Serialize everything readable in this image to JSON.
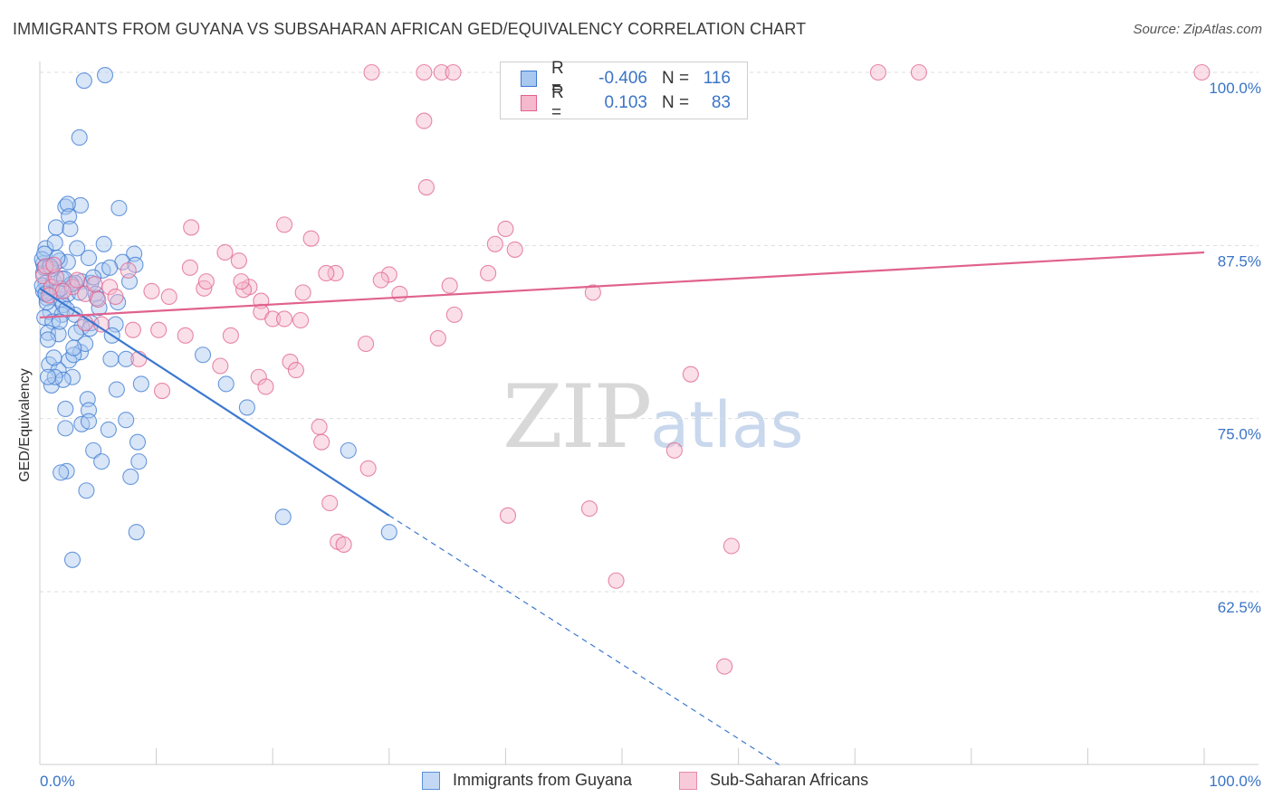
{
  "title": "IMMIGRANTS FROM GUYANA VS SUBSAHARAN AFRICAN GED/EQUIVALENCY CORRELATION CHART",
  "source": "Source: ZipAtlas.com",
  "watermark": {
    "zip": "ZIP",
    "atlas": "atlas"
  },
  "legend": {
    "series1": {
      "r_label": "R =",
      "r_value": "-0.406",
      "n_label": "N =",
      "n_value": "116"
    },
    "series2": {
      "r_label": "R =",
      "r_value": "0.103",
      "n_label": "N =",
      "n_value": "83"
    }
  },
  "colors": {
    "blue": "#3b78d0",
    "blue_fill": "#a9c8f0",
    "pink": "#e0628e",
    "pink_fill": "#f5b8cc",
    "tick_text": "#3a74c6",
    "grid": "#dddddd"
  },
  "chart_data": {
    "type": "scatter",
    "title": "IMMIGRANTS FROM GUYANA VS SUBSAHARAN AFRICAN GED/EQUIVALENCY CORRELATION CHART",
    "xlabel": "",
    "ylabel": "GED/Equivalency",
    "xlim": [
      0,
      100
    ],
    "ylim": [
      50,
      101
    ],
    "x_tick_labels": [
      "0.0%",
      "100.0%"
    ],
    "y_ticks": [
      {
        "value": 100.0,
        "label": "100.0%"
      },
      {
        "value": 87.5,
        "label": "87.5%"
      },
      {
        "value": 75.0,
        "label": "75.0%"
      },
      {
        "value": 62.5,
        "label": "62.5%"
      }
    ],
    "series": [
      {
        "name": "Immigrants from Guyana",
        "color": "blue",
        "points": [
          [
            3.8,
            99.4
          ],
          [
            5.6,
            99.8
          ],
          [
            3.4,
            95.3
          ],
          [
            2.2,
            90.3
          ],
          [
            3.5,
            90.4
          ],
          [
            6.8,
            90.2
          ],
          [
            2.4,
            90.5
          ],
          [
            1.4,
            88.8
          ],
          [
            2.5,
            89.6
          ],
          [
            2.6,
            88.7
          ],
          [
            0.5,
            87.3
          ],
          [
            1.3,
            87.7
          ],
          [
            3.2,
            87.3
          ],
          [
            4.2,
            86.6
          ],
          [
            5.5,
            87.6
          ],
          [
            8.1,
            86.9
          ],
          [
            0.3,
            86.2
          ],
          [
            0.8,
            86.0
          ],
          [
            1.7,
            86.4
          ],
          [
            2.4,
            86.3
          ],
          [
            5.4,
            85.7
          ],
          [
            7.1,
            86.3
          ],
          [
            8.2,
            86.1
          ],
          [
            0.3,
            85.5
          ],
          [
            0.5,
            84.8
          ],
          [
            1.2,
            84.9
          ],
          [
            1.9,
            85.1
          ],
          [
            3.6,
            84.9
          ],
          [
            4.4,
            84.8
          ],
          [
            7.7,
            84.9
          ],
          [
            0.5,
            84.1
          ],
          [
            0.6,
            83.7
          ],
          [
            0.9,
            84.1
          ],
          [
            1.8,
            83.6
          ],
          [
            2.4,
            84.0
          ],
          [
            3.4,
            84.1
          ],
          [
            4.8,
            84.0
          ],
          [
            0.3,
            84.2
          ],
          [
            6.7,
            83.4
          ],
          [
            2.0,
            83.2
          ],
          [
            0.9,
            82.7
          ],
          [
            1.9,
            82.5
          ],
          [
            3.0,
            82.5
          ],
          [
            0.4,
            82.3
          ],
          [
            1.1,
            82.0
          ],
          [
            4.4,
            81.9
          ],
          [
            3.6,
            81.6
          ],
          [
            0.7,
            81.2
          ],
          [
            1.6,
            81.1
          ],
          [
            3.1,
            81.2
          ],
          [
            0.7,
            80.7
          ],
          [
            4.3,
            81.5
          ],
          [
            6.5,
            81.8
          ],
          [
            6.2,
            81.0
          ],
          [
            3.5,
            79.8
          ],
          [
            2.5,
            79.2
          ],
          [
            6.1,
            79.3
          ],
          [
            7.4,
            79.3
          ],
          [
            2.9,
            79.6
          ],
          [
            0.8,
            78.9
          ],
          [
            1.6,
            78.5
          ],
          [
            2.8,
            78.0
          ],
          [
            1.0,
            77.4
          ],
          [
            2.0,
            77.8
          ],
          [
            6.6,
            77.1
          ],
          [
            8.7,
            77.5
          ],
          [
            14.0,
            79.6
          ],
          [
            16.0,
            77.5
          ],
          [
            1.3,
            78.0
          ],
          [
            0.7,
            78.0
          ],
          [
            4.1,
            76.4
          ],
          [
            4.2,
            75.6
          ],
          [
            2.2,
            75.7
          ],
          [
            3.6,
            74.6
          ],
          [
            4.2,
            74.8
          ],
          [
            7.4,
            74.9
          ],
          [
            2.2,
            74.3
          ],
          [
            5.9,
            74.2
          ],
          [
            8.4,
            73.3
          ],
          [
            4.6,
            72.7
          ],
          [
            5.3,
            71.9
          ],
          [
            8.5,
            71.9
          ],
          [
            2.3,
            71.2
          ],
          [
            1.8,
            71.1
          ],
          [
            7.8,
            70.8
          ],
          [
            4.0,
            69.8
          ],
          [
            8.3,
            66.8
          ],
          [
            2.8,
            64.8
          ],
          [
            17.8,
            75.8
          ],
          [
            20.9,
            67.9
          ],
          [
            26.5,
            72.7
          ],
          [
            30.0,
            66.8
          ],
          [
            1.0,
            84.5
          ],
          [
            3.0,
            84.8
          ],
          [
            0.2,
            86.5
          ],
          [
            0.4,
            86.9
          ],
          [
            1.5,
            86.6
          ],
          [
            0.2,
            84.6
          ],
          [
            0.6,
            83.4
          ],
          [
            5.1,
            83.0
          ],
          [
            2.7,
            84.7
          ],
          [
            4.6,
            85.2
          ],
          [
            1.0,
            85.8
          ],
          [
            2.3,
            82.9
          ],
          [
            0.5,
            84.0
          ],
          [
            1.5,
            84.2
          ],
          [
            3.9,
            80.4
          ],
          [
            2.9,
            80.1
          ],
          [
            1.2,
            79.4
          ],
          [
            0.4,
            85.9
          ],
          [
            0.9,
            86.0
          ],
          [
            1.8,
            84.4
          ],
          [
            2.1,
            85.1
          ],
          [
            6.0,
            85.9
          ],
          [
            4.9,
            83.7
          ],
          [
            1.7,
            82.0
          ]
        ]
      },
      {
        "name": "Sub-Saharan Africans",
        "color": "pink",
        "points": [
          [
            28.5,
            100.0
          ],
          [
            33.0,
            100.0
          ],
          [
            34.5,
            100.0
          ],
          [
            35.5,
            100.0
          ],
          [
            72.0,
            100.0
          ],
          [
            75.5,
            100.0
          ],
          [
            99.8,
            100.0
          ],
          [
            33.0,
            96.5
          ],
          [
            33.2,
            91.7
          ],
          [
            13.0,
            88.8
          ],
          [
            21.0,
            89.0
          ],
          [
            23.3,
            88.0
          ],
          [
            40.0,
            88.7
          ],
          [
            39.1,
            87.6
          ],
          [
            40.8,
            87.2
          ],
          [
            15.9,
            87.0
          ],
          [
            17.1,
            86.4
          ],
          [
            12.9,
            85.9
          ],
          [
            25.4,
            85.5
          ],
          [
            38.5,
            85.5
          ],
          [
            30.0,
            85.4
          ],
          [
            29.3,
            85.0
          ],
          [
            7.6,
            85.7
          ],
          [
            9.6,
            84.2
          ],
          [
            11.1,
            83.8
          ],
          [
            14.1,
            84.4
          ],
          [
            18.0,
            84.5
          ],
          [
            14.3,
            84.9
          ],
          [
            22.6,
            84.1
          ],
          [
            24.6,
            85.5
          ],
          [
            30.9,
            84.0
          ],
          [
            35.2,
            84.6
          ],
          [
            47.5,
            84.1
          ],
          [
            0.3,
            85.3
          ],
          [
            1.0,
            84.5
          ],
          [
            1.4,
            85.2
          ],
          [
            2.8,
            84.5
          ],
          [
            3.9,
            84.0
          ],
          [
            5.0,
            83.6
          ],
          [
            6.0,
            84.5
          ],
          [
            6.5,
            83.8
          ],
          [
            17.5,
            84.3
          ],
          [
            17.3,
            84.9
          ],
          [
            19.0,
            83.5
          ],
          [
            19.0,
            82.7
          ],
          [
            20.0,
            82.2
          ],
          [
            21.0,
            82.2
          ],
          [
            22.4,
            82.1
          ],
          [
            3.9,
            81.9
          ],
          [
            5.3,
            81.8
          ],
          [
            8.0,
            81.4
          ],
          [
            10.2,
            81.4
          ],
          [
            12.5,
            81.0
          ],
          [
            16.4,
            81.0
          ],
          [
            28.0,
            80.4
          ],
          [
            35.6,
            82.5
          ],
          [
            34.2,
            80.8
          ],
          [
            21.5,
            79.1
          ],
          [
            22.0,
            78.5
          ],
          [
            15.5,
            78.8
          ],
          [
            8.5,
            79.3
          ],
          [
            18.8,
            78.0
          ],
          [
            19.4,
            77.3
          ],
          [
            10.5,
            77.0
          ],
          [
            55.9,
            78.2
          ],
          [
            24.0,
            74.4
          ],
          [
            24.2,
            73.3
          ],
          [
            28.2,
            71.4
          ],
          [
            54.5,
            72.7
          ],
          [
            24.9,
            68.9
          ],
          [
            40.2,
            68.0
          ],
          [
            47.2,
            68.5
          ],
          [
            25.6,
            66.1
          ],
          [
            26.1,
            65.9
          ],
          [
            59.4,
            65.8
          ],
          [
            49.5,
            63.3
          ],
          [
            58.8,
            57.1
          ],
          [
            0.5,
            86.0
          ],
          [
            1.2,
            86.1
          ],
          [
            2.0,
            84.2
          ],
          [
            4.7,
            84.7
          ],
          [
            0.8,
            83.9
          ],
          [
            3.2,
            85.0
          ]
        ]
      }
    ],
    "trendlines": [
      {
        "series": "Immigrants from Guyana",
        "solid": [
          [
            0,
            84.4
          ],
          [
            30,
            68.0
          ]
        ],
        "dashed": [
          [
            30,
            68.0
          ],
          [
            63.5,
            50.0
          ]
        ]
      },
      {
        "series": "Sub-Saharan Africans",
        "solid": [
          [
            0,
            82.3
          ],
          [
            100,
            87.0
          ]
        ]
      }
    ]
  }
}
